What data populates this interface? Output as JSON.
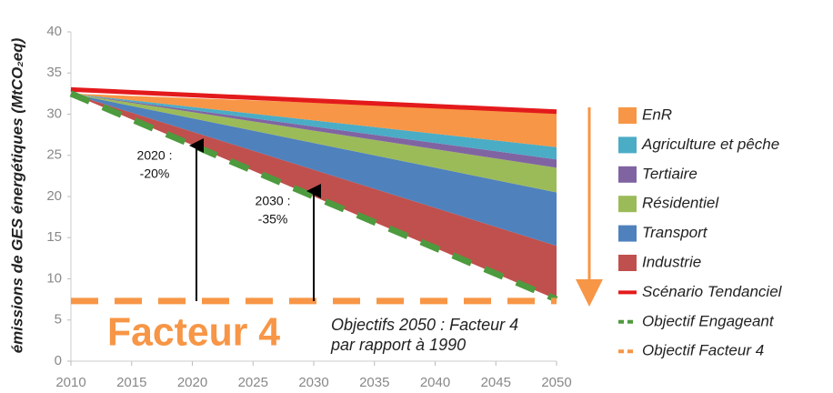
{
  "chart_data": {
    "type": "area",
    "y_label": "émissions de GES énergétiques (MtCO₂eq)",
    "x": [
      2010,
      2050
    ],
    "xlim": [
      2010,
      2050
    ],
    "xticks": [
      2010,
      2015,
      2020,
      2025,
      2030,
      2035,
      2040,
      2045,
      2050
    ],
    "ylim": [
      0,
      40
    ],
    "yticks": [
      0,
      5,
      10,
      15,
      20,
      25,
      30,
      35,
      40
    ],
    "series": [
      {
        "name": "EnR",
        "color": "#f79646",
        "values": [
          0,
          4.3
        ]
      },
      {
        "name": "Agriculture et pêche",
        "color": "#4bacc6",
        "values": [
          0,
          1.5
        ]
      },
      {
        "name": "Tertiaire",
        "color": "#8064a2",
        "values": [
          0,
          1
        ]
      },
      {
        "name": "Résidentiel",
        "color": "#9bbb59",
        "values": [
          0,
          3
        ]
      },
      {
        "name": "Transport",
        "color": "#4f81bd",
        "values": [
          0,
          6.5
        ]
      },
      {
        "name": "Industrie",
        "color": "#c0504d",
        "values": [
          0,
          6.5
        ]
      }
    ],
    "lines": [
      {
        "name": "Scénario Tendanciel",
        "color": "#e31a1c",
        "dashed": false,
        "values": [
          33,
          30.3
        ]
      },
      {
        "name": "Objectif Engageant",
        "color": "#4e9a3e",
        "dashed": true,
        "values": [
          32.5,
          7.5
        ]
      },
      {
        "name": "Objectif Facteur 4",
        "color": "#f79646",
        "dashed": true,
        "values": [
          7.3,
          7.3
        ]
      }
    ],
    "annotations": [
      {
        "lines": [
          "2020 :",
          "-20%"
        ]
      },
      {
        "lines": [
          "2030 :",
          "-35%"
        ]
      }
    ],
    "big_label": "Facteur 4",
    "note": [
      "Objectifs 2050 : Facteur 4",
      "par rapport à 1990"
    ]
  }
}
